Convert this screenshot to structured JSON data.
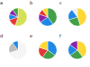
{
  "chart_data": [
    {
      "type": "pie",
      "title": "a",
      "values": [
        55,
        15,
        10,
        10,
        10
      ],
      "colors": [
        "#d4e157",
        "#e53935",
        "#1e88e5",
        "#8e24aa",
        "#43a047"
      ]
    },
    {
      "type": "pie",
      "title": "b",
      "values": [
        40,
        25,
        15,
        10,
        10
      ],
      "colors": [
        "#43a047",
        "#1e88e5",
        "#8e24aa",
        "#e53935",
        "#fdd835"
      ]
    },
    {
      "type": "pie",
      "title": "c",
      "values": [
        45,
        25,
        20,
        10
      ],
      "colors": [
        "#fdd835",
        "#43a047",
        "#1e88e5",
        "#eeeeee"
      ]
    },
    {
      "type": "pie",
      "title": "d",
      "values": [
        70,
        20,
        10
      ],
      "colors": [
        "#f5f5f5",
        "#bdbdbd",
        "#1e88e5"
      ]
    },
    {
      "type": "pie",
      "title": "e",
      "values": [
        35,
        25,
        20,
        20
      ],
      "colors": [
        "#1e88e5",
        "#43a047",
        "#e53935",
        "#fdd835"
      ]
    },
    {
      "type": "pie",
      "title": "f",
      "values": [
        40,
        25,
        20,
        15
      ],
      "colors": [
        "#fdd835",
        "#43a047",
        "#1e88e5",
        "#8e24aa"
      ]
    }
  ]
}
